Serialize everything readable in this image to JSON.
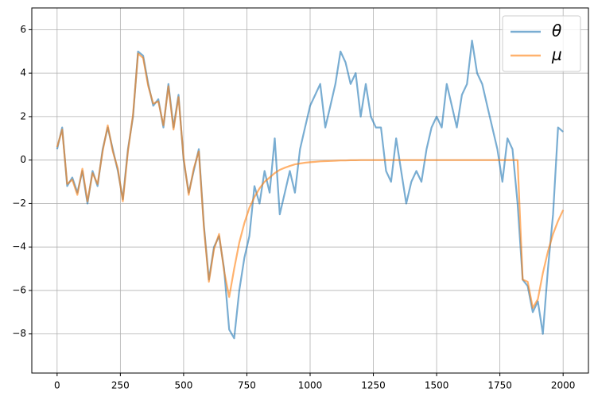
{
  "chart_data": {
    "type": "line",
    "x": [
      0,
      20,
      40,
      60,
      80,
      100,
      120,
      140,
      160,
      180,
      200,
      220,
      240,
      260,
      280,
      300,
      320,
      340,
      360,
      380,
      400,
      420,
      440,
      460,
      480,
      500,
      520,
      540,
      560,
      580,
      600,
      620,
      640,
      660,
      680,
      700,
      720,
      740,
      760,
      780,
      800,
      820,
      840,
      860,
      880,
      900,
      920,
      940,
      960,
      980,
      1000,
      1020,
      1040,
      1060,
      1080,
      1100,
      1120,
      1140,
      1160,
      1180,
      1200,
      1220,
      1240,
      1260,
      1280,
      1300,
      1320,
      1340,
      1360,
      1380,
      1400,
      1420,
      1440,
      1460,
      1480,
      1500,
      1520,
      1540,
      1560,
      1580,
      1600,
      1620,
      1640,
      1660,
      1680,
      1700,
      1720,
      1740,
      1760,
      1780,
      1800,
      1820,
      1840,
      1860,
      1880,
      1900,
      1920,
      1940,
      1960,
      1980,
      2000
    ],
    "series": [
      {
        "name": "θ",
        "color": "#1f77b4",
        "values": [
          0.5,
          1.5,
          -1.2,
          -0.8,
          -1.5,
          -0.5,
          -2,
          -0.5,
          -1.2,
          0.5,
          1.5,
          0.5,
          -0.5,
          -1.8,
          0.5,
          2,
          5,
          4.8,
          3.5,
          2.5,
          2.8,
          1.5,
          3.5,
          1.5,
          3,
          0,
          -1.5,
          -0.5,
          0.5,
          -3,
          -5.5,
          -4,
          -3.5,
          -5,
          -7.8,
          -8.2,
          -6,
          -4.5,
          -3.5,
          -1.2,
          -2,
          -0.5,
          -1.5,
          1,
          -2.5,
          -1.5,
          -0.5,
          -1.5,
          0.5,
          1.5,
          2.5,
          3,
          3.5,
          1.5,
          2.5,
          3.5,
          5,
          4.5,
          3.5,
          4,
          2,
          3.5,
          2,
          1.5,
          1.5,
          -0.5,
          -1,
          1,
          -0.5,
          -2,
          -1,
          -0.5,
          -1,
          0.5,
          1.5,
          2,
          1.5,
          3.5,
          2.5,
          1.5,
          3,
          3.5,
          5.5,
          4,
          3.5,
          2.5,
          1.5,
          0.5,
          -1,
          1,
          0.5,
          -2,
          -5.5,
          -5.8,
          -7,
          -6.5,
          -8,
          -5,
          -2.5,
          1.5,
          1.3
        ]
      },
      {
        "name": "μ",
        "color": "#ff7f0e",
        "values": [
          0.6,
          1.4,
          -1.1,
          -0.9,
          -1.6,
          -0.4,
          -1.9,
          -0.6,
          -1.1,
          0.4,
          1.6,
          0.4,
          -0.4,
          -1.9,
          0.4,
          2.1,
          4.9,
          4.7,
          3.4,
          2.6,
          2.7,
          1.6,
          3.4,
          1.4,
          2.9,
          0.1,
          -1.6,
          -0.4,
          0.4,
          -3.1,
          -5.6,
          -4.1,
          -3.4,
          -5.1,
          -6.3,
          -5,
          -3.8,
          -2.9,
          -2.2,
          -1.7,
          -1.3,
          -1,
          -0.8,
          -0.6,
          -0.45,
          -0.35,
          -0.27,
          -0.2,
          -0.16,
          -0.12,
          -0.1,
          -0.08,
          -0.06,
          -0.05,
          -0.04,
          -0.03,
          -0.02,
          -0.02,
          -0.01,
          -0.01,
          0,
          0,
          0,
          0,
          0,
          0,
          0,
          0,
          0,
          0,
          0,
          0,
          0,
          0,
          0,
          0,
          0,
          0,
          0,
          0,
          0,
          0,
          0,
          0,
          0,
          0,
          0,
          0,
          0,
          0,
          0,
          0,
          -5.5,
          -5.6,
          -6.8,
          -6.4,
          -5.2,
          -4.2,
          -3.4,
          -2.8,
          -2.3
        ]
      }
    ],
    "xlim": [
      -100,
      2100
    ],
    "ylim": [
      -9.8,
      7.0
    ],
    "xticks": [
      0,
      250,
      500,
      750,
      1000,
      1250,
      1500,
      1750,
      2000
    ],
    "yticks": [
      {
        "value": -8,
        "label": "−8"
      },
      {
        "value": -6,
        "label": "−6"
      },
      {
        "value": -4,
        "label": "−4"
      },
      {
        "value": -2,
        "label": "−2"
      },
      0,
      2,
      4,
      6
    ],
    "grid": true,
    "legend": "upper right"
  }
}
